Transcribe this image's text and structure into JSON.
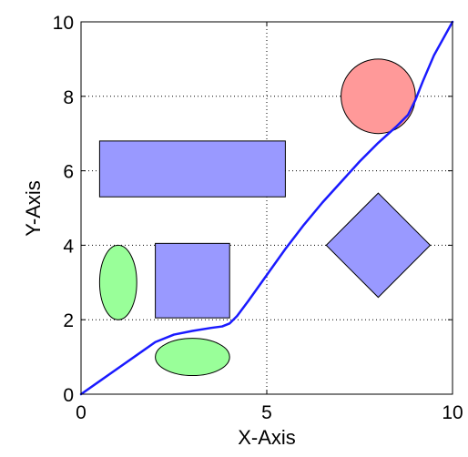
{
  "chart_data": {
    "type": "line",
    "title": "",
    "xlabel": "X-Axis",
    "ylabel": "Y-Axis",
    "xlim": [
      0,
      10
    ],
    "ylim": [
      0,
      10
    ],
    "grid": true,
    "grid_style": "dotted",
    "x_ticks": [
      0,
      5,
      10
    ],
    "y_ticks": [
      0,
      2,
      4,
      6,
      8,
      10
    ],
    "x_tick_labels": [
      "0",
      "5",
      "10"
    ],
    "y_tick_labels": [
      "0",
      "2",
      "4",
      "6",
      "8",
      "10"
    ],
    "series": [
      {
        "color": "#1a1aff",
        "x": [
          0,
          0.5,
          1,
          1.5,
          2,
          2.5,
          3,
          3.5,
          3.8,
          4,
          4.2,
          4.5,
          5,
          5.5,
          6,
          6.5,
          7,
          7.5,
          8,
          8.5,
          8.8,
          9,
          9.2,
          9.5,
          10
        ],
        "y": [
          0,
          0.35,
          0.7,
          1.05,
          1.4,
          1.6,
          1.7,
          1.78,
          1.82,
          1.9,
          2.1,
          2.5,
          3.2,
          3.9,
          4.55,
          5.15,
          5.7,
          6.25,
          6.75,
          7.2,
          7.5,
          7.9,
          8.4,
          9.1,
          10
        ]
      }
    ],
    "shapes": [
      {
        "kind": "rectangle",
        "x": [
          0.5,
          5.5
        ],
        "y": [
          5.3,
          6.8
        ],
        "fill": "#9999ff",
        "stroke": "#000000"
      },
      {
        "kind": "rectangle",
        "x": [
          2,
          4
        ],
        "y": [
          2.05,
          4.05
        ],
        "fill": "#9999ff",
        "stroke": "#000000"
      },
      {
        "kind": "ellipse",
        "cx": 1,
        "cy": 3,
        "rx": 0.5,
        "ry": 1,
        "fill": "#99ff99",
        "stroke": "#000000"
      },
      {
        "kind": "ellipse",
        "cx": 3,
        "cy": 1,
        "rx": 1,
        "ry": 0.5,
        "fill": "#99ff99",
        "stroke": "#000000"
      },
      {
        "kind": "ellipse",
        "cx": 8,
        "cy": 8,
        "rx": 1,
        "ry": 1,
        "fill": "#ff9999",
        "stroke": "#000000"
      },
      {
        "kind": "polygon",
        "points": [
          [
            8,
            5.4
          ],
          [
            9.4,
            4
          ],
          [
            8,
            2.6
          ],
          [
            6.6,
            4
          ]
        ],
        "fill": "#9999ff",
        "stroke": "#000000"
      }
    ]
  }
}
